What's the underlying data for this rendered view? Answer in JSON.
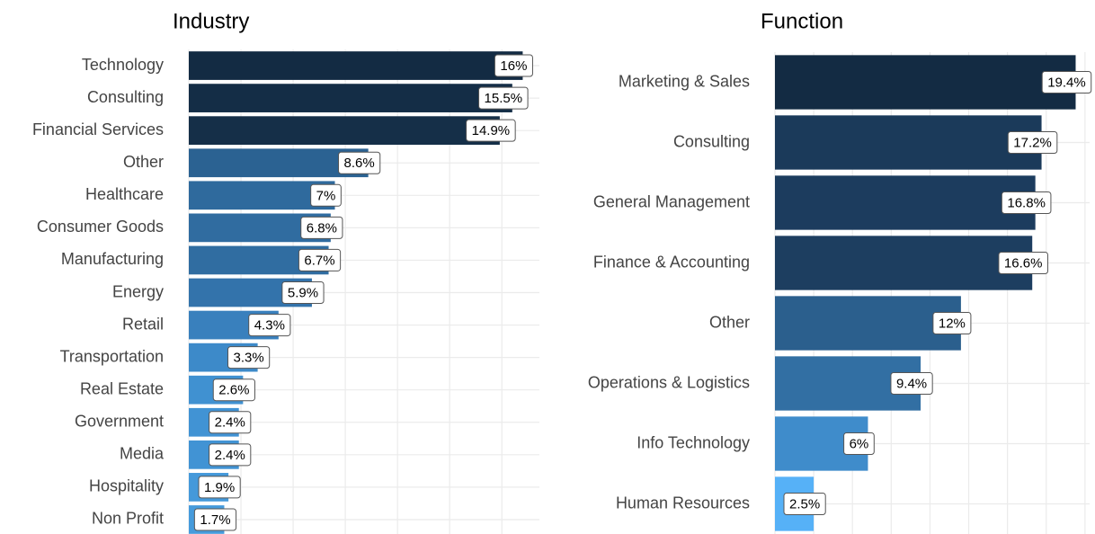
{
  "chart_data": [
    {
      "type": "barh",
      "title": "Industry",
      "categories": [
        "Technology",
        "Consulting",
        "Financial Services",
        "Other",
        "Healthcare",
        "Consumer Goods",
        "Manufacturing",
        "Energy",
        "Retail",
        "Transportation",
        "Real Estate",
        "Government",
        "Media",
        "Hospitality",
        "Non Profit"
      ],
      "values": [
        16,
        15.5,
        14.9,
        8.6,
        7,
        6.8,
        6.7,
        5.9,
        4.3,
        3.3,
        2.6,
        2.4,
        2.4,
        1.9,
        1.7
      ],
      "value_labels": [
        "16%",
        "15.5%",
        "14.9%",
        "8.6%",
        "7%",
        "6.8%",
        "6.7%",
        "5.9%",
        "4.3%",
        "3.3%",
        "2.6%",
        "2.4%",
        "2.4%",
        "1.9%",
        "1.7%"
      ],
      "colors": [
        "#132b43",
        "#142d46",
        "#152f48",
        "#2b6292",
        "#2f6a9d",
        "#306ca0",
        "#306da1",
        "#3373ab",
        "#3980bd",
        "#3d8ac9",
        "#4091d1",
        "#4193d4",
        "#4193d4",
        "#4599da",
        "#469bdc"
      ],
      "xlim": [
        0,
        16.8
      ],
      "xticks": [
        0,
        2.5,
        5,
        7.5,
        10,
        12.5,
        15
      ],
      "grid": true
    },
    {
      "type": "barh",
      "title": "Function",
      "categories": [
        "Marketing & Sales",
        "Consulting",
        "General Management",
        "Finance & Accounting",
        "Other",
        "Operations & Logistics",
        "Info Technology",
        "Human Resources"
      ],
      "values": [
        19.4,
        17.2,
        16.8,
        16.6,
        12,
        9.4,
        6,
        2.5
      ],
      "value_labels": [
        "19.4%",
        "17.2%",
        "16.8%",
        "16.6%",
        "12%",
        "9.4%",
        "6%",
        "2.5%"
      ],
      "colors": [
        "#132b43",
        "#1b3a5a",
        "#1c3c5e",
        "#1d3e60",
        "#2b5f8d",
        "#326fa3",
        "#3f8ccb",
        "#56b1f7"
      ],
      "xlim": [
        0,
        20.3
      ],
      "xticks": [
        0,
        2.5,
        5,
        7.5,
        10,
        12.5,
        15,
        17.5,
        20
      ],
      "grid": true
    }
  ]
}
